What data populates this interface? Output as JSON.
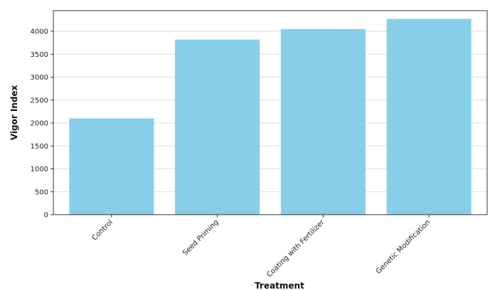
{
  "chart_data": {
    "type": "bar",
    "title": "",
    "xlabel": "Treatment",
    "ylabel": "Vigor Index",
    "categories": [
      "Control",
      "Seed Priming",
      "Coating with Fertilizer",
      "Genetic Modification"
    ],
    "values": [
      2100,
      3820,
      4050,
      4270
    ],
    "ylim": [
      0,
      4450
    ],
    "yticks": [
      0,
      500,
      1000,
      1500,
      2000,
      2500,
      3000,
      3500,
      4000
    ],
    "grid": true,
    "bar_color": "#87CEEB",
    "legend": "none"
  }
}
